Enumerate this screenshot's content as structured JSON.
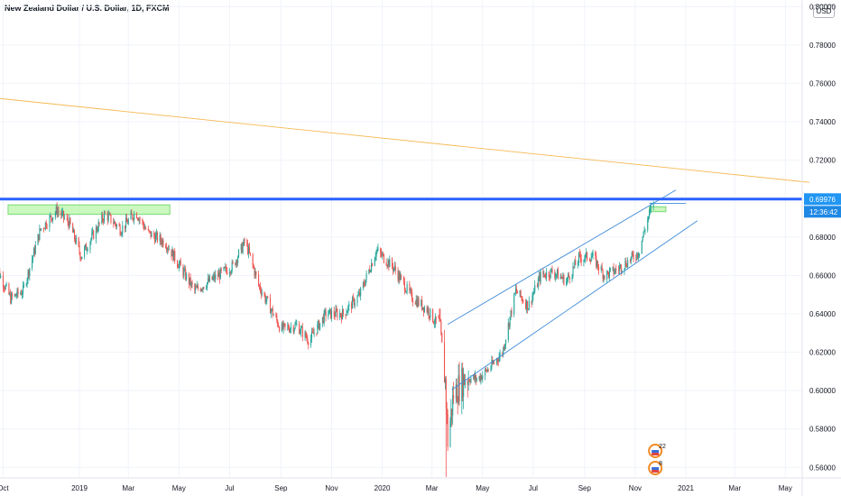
{
  "header": {
    "title": "New Zealand Dollar / U.S. Dollar, 1D, FXCM",
    "currency_button": "USD"
  },
  "price_labels": {
    "last_price": "0.69976",
    "countdown": "12:36:42"
  },
  "event_markers": [
    {
      "label": "22",
      "date": "2020-11-23"
    },
    {
      "label": "8",
      "date": "2020-11-23"
    }
  ],
  "colors": {
    "up": "#26a69a",
    "down": "#ef5350",
    "resistance_line": "#2962ff",
    "channel_lines": "#3d8bd9",
    "long_trendline": "#f7b853",
    "zone_fill": "#b9f6a8",
    "zone_stroke": "#5fd35f",
    "last_price_bg": "#2196f3",
    "countdown_bg": "#1e88e5"
  },
  "chart_data": {
    "type": "candlestick",
    "title": "New Zealand Dollar / U.S. Dollar, 1D, FXCM",
    "x_tick_labels": [
      "Oct",
      "2019",
      "Mar",
      "May",
      "Jul",
      "Sep",
      "Nov",
      "2020",
      "Mar",
      "May",
      "Jul",
      "Sep",
      "Nov",
      "2021",
      "Mar",
      "May"
    ],
    "x_tick_dates": [
      "2018-10-01",
      "2019-01-01",
      "2019-03-01",
      "2019-05-01",
      "2019-07-01",
      "2019-09-01",
      "2019-11-01",
      "2020-01-01",
      "2020-03-01",
      "2020-05-01",
      "2020-07-01",
      "2020-09-01",
      "2020-11-01",
      "2021-01-01",
      "2021-03-01",
      "2021-05-01"
    ],
    "y_tick_labels": [
      "0.56000",
      "0.58000",
      "0.60000",
      "0.62000",
      "0.64000",
      "0.66000",
      "0.68000",
      "0.72000",
      "0.74000",
      "0.76000",
      "0.78000",
      "0.80000"
    ],
    "ylim": [
      0.5545,
      0.8035
    ],
    "price_path": [
      [
        "2018-09-20",
        0.667
      ],
      [
        "2018-10-10",
        0.648
      ],
      [
        "2018-10-25",
        0.652
      ],
      [
        "2018-11-15",
        0.684
      ],
      [
        "2018-12-05",
        0.694
      ],
      [
        "2018-12-20",
        0.687
      ],
      [
        "2019-01-03",
        0.67
      ],
      [
        "2019-01-20",
        0.683
      ],
      [
        "2019-02-01",
        0.692
      ],
      [
        "2019-02-20",
        0.684
      ],
      [
        "2019-03-10",
        0.693
      ],
      [
        "2019-03-25",
        0.682
      ],
      [
        "2019-04-15",
        0.677
      ],
      [
        "2019-05-20",
        0.652
      ],
      [
        "2019-06-10",
        0.658
      ],
      [
        "2019-07-05",
        0.665
      ],
      [
        "2019-07-20",
        0.678
      ],
      [
        "2019-08-05",
        0.655
      ],
      [
        "2019-09-01",
        0.632
      ],
      [
        "2019-09-20",
        0.634
      ],
      [
        "2019-10-05",
        0.626
      ],
      [
        "2019-10-25",
        0.64
      ],
      [
        "2019-11-15",
        0.64
      ],
      [
        "2019-12-05",
        0.65
      ],
      [
        "2019-12-25",
        0.673
      ],
      [
        "2020-01-15",
        0.664
      ],
      [
        "2020-02-05",
        0.649
      ],
      [
        "2020-02-25",
        0.642
      ],
      [
        "2020-03-10",
        0.632
      ],
      [
        "2020-03-17",
        0.605
      ],
      [
        "2020-03-20",
        0.574
      ],
      [
        "2020-03-27",
        0.598
      ],
      [
        "2020-04-10",
        0.607
      ],
      [
        "2020-04-25",
        0.606
      ],
      [
        "2020-05-10",
        0.612
      ],
      [
        "2020-05-25",
        0.62
      ],
      [
        "2020-06-10",
        0.652
      ],
      [
        "2020-06-25",
        0.644
      ],
      [
        "2020-07-10",
        0.66
      ],
      [
        "2020-07-25",
        0.662
      ],
      [
        "2020-08-10",
        0.657
      ],
      [
        "2020-08-25",
        0.669
      ],
      [
        "2020-09-10",
        0.67
      ],
      [
        "2020-09-25",
        0.66
      ],
      [
        "2020-10-10",
        0.663
      ],
      [
        "2020-10-25",
        0.668
      ],
      [
        "2020-11-05",
        0.672
      ],
      [
        "2020-11-15",
        0.688
      ],
      [
        "2020-11-23",
        0.698
      ]
    ],
    "extreme_lows": [
      [
        "2020-03-18",
        0.555
      ]
    ],
    "horizontal_levels": [
      {
        "price": 0.69976,
        "label": "0.69976"
      }
    ],
    "zones": [
      {
        "from": "2018-10-07",
        "to": "2019-04-20",
        "low": 0.6918,
        "high": 0.6968
      },
      {
        "from": "2020-11-18",
        "to": "2020-12-08",
        "low": 0.6932,
        "high": 0.6958
      }
    ],
    "trend_lines": [
      {
        "name": "long-trendline",
        "from": [
          "2018-09-20",
          0.7525
        ],
        "to": [
          "2021-05-30",
          0.7085
        ]
      },
      {
        "name": "channel-upper",
        "from": [
          "2020-03-20",
          0.6345
        ],
        "to": [
          "2020-12-20",
          0.7045
        ]
      },
      {
        "name": "channel-lower",
        "from": [
          "2020-03-25",
          0.6005
        ],
        "to": [
          "2021-01-15",
          0.6885
        ]
      },
      {
        "name": "short-level",
        "from": [
          "2020-11-18",
          0.6976
        ],
        "to": [
          "2021-01-01",
          0.6976
        ]
      }
    ]
  }
}
